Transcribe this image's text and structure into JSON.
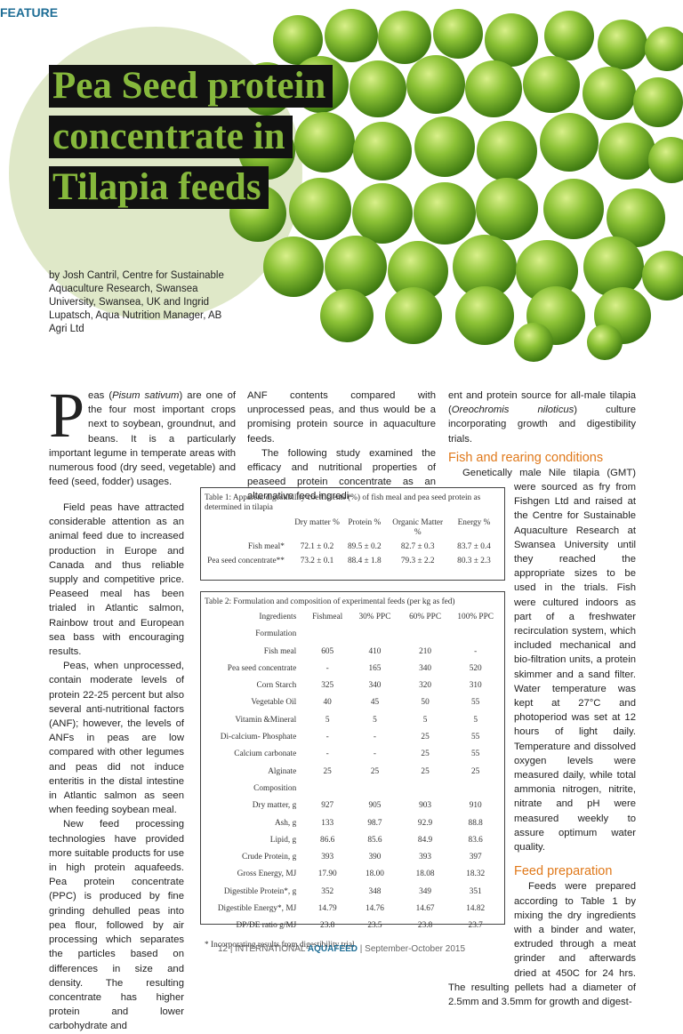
{
  "header": {
    "section": "FEATURE"
  },
  "title": {
    "lines": [
      "Pea Seed protein",
      "concentrate in",
      "Tilapia feeds"
    ]
  },
  "byline": "by Josh Cantril, Centre for Sustainable Aquaculture Research, Swansea University, Swansea, UK and Ingrid Lupatsch, Aqua Nutrition Manager, AB Agri Ltd",
  "intro": {
    "drop_cap": "P",
    "segments": [
      "eas (",
      "Pisum sativum",
      ") are one of the four most important crops next to soybean, groundnut, and beans. It is a particularly important legume in temperate areas with numerous food (dry seed, vegetable) and feed (seed, fodder) usages."
    ]
  },
  "column1": {
    "paragraphs": [
      "Field peas have attracted considerable attention as an animal feed due to increased production in Europe and Canada and thus reliable supply and competitive price. Peaseed meal has been trialed in Atlantic salmon, Rainbow trout and European sea bass with encouraging results.",
      "Peas, when unprocessed, contain moderate levels of protein 22-25 percent but also several anti-nutritional factors (ANF); however, the levels of ANFs in peas are low compared with other legumes and peas did not induce enteritis in the distal intestine in Atlantic salmon as seen when feeding soybean meal.",
      "New feed processing technologies have provided more suitable products for use in high protein aquafeeds. Pea protein concentrate (PPC) is produced by fine grinding dehulled peas into pea flour, followed by air processing which separates the particles based on differences in size and density. The resulting concentrate has higher protein and lower carbohydrate and"
    ]
  },
  "column2": {
    "paragraphs": [
      "ANF contents compared with unprocessed peas, and thus would be a promising protein source in aquaculture feeds.",
      "The following study examined the efficacy and nutritional properties of peaseed protein concentrate as an alternative feed ingredi-"
    ]
  },
  "column3": {
    "lead": [
      "ent and protein source for all-male tilapia (",
      "Oreochromis niloticus",
      ") culture incorporating growth and digestibility trials."
    ],
    "sections": [
      {
        "heading": "Fish and rearing conditions",
        "text": "Genetically male Nile tilapia (GMT) were sourced as fry from Fishgen Ltd and raised at the Centre for Sustainable Aquaculture Research at Swansea University until they reached the appropriate sizes to be used in the trials. Fish were cultured indoors as part of a freshwater recirculation system, which included mechanical and bio-filtration units, a protein skimmer and a sand filter. Water temperature was kept at 27°C and photoperiod was set at 12 hours of light daily. Temperature and dissolved oxygen levels were measured daily, while total ammonia nitrogen, nitrite, nitrate and pH were measured weekly to assure optimum water quality."
      },
      {
        "heading": "Feed preparation",
        "text": "Feeds were prepared according to Table 1 by mixing the dry ingredients with a binder and water, extruded through a meat grinder and afterwards dried at 450C for 24 hrs. The resulting pellets had a diameter of 2.5mm and 3.5mm for growth and digest-"
      }
    ]
  },
  "table1": {
    "caption": "Table 1: Apparent digestibility coefficients (%) of fish meal and pea seed protein as determined in tilapia",
    "header": [
      "",
      "Dry matter %",
      "Protein %",
      "Organic Matter %",
      "Energy %"
    ],
    "rows": [
      [
        "Fish meal*",
        "72.1 ± 0.2",
        "89.5 ± 0.2",
        "82.7 ± 0.3",
        "83.7 ± 0.4"
      ],
      [
        "Pea seed concentrate**",
        "73.2 ± 0.1",
        "88.4 ± 1.8",
        "79.3 ± 2.2",
        "80.3 ± 2.3"
      ]
    ]
  },
  "table2": {
    "caption": "Table 2: Formulation and composition of experimental feeds (per kg as fed)",
    "header": [
      "Ingredients",
      "Fishmeal",
      "30% PPC",
      "60% PPC",
      "100% PPC"
    ],
    "rows": [
      [
        "Formulation"
      ],
      [
        "Fish meal",
        "605",
        "410",
        "210",
        "-"
      ],
      [
        "Pea seed concentrate",
        "-",
        "165",
        "340",
        "520"
      ],
      [
        "Corn Starch",
        "325",
        "340",
        "320",
        "310"
      ],
      [
        "Vegetable Oil",
        "40",
        "45",
        "50",
        "55"
      ],
      [
        "Vitamin &Mineral",
        "5",
        "5",
        "5",
        "5"
      ],
      [
        "Di-calcium- Phosphate",
        "-",
        "-",
        "25",
        "55"
      ],
      [
        "Calcium carbonate",
        "-",
        "-",
        "25",
        "55"
      ],
      [
        "Alginate",
        "25",
        "25",
        "25",
        "25"
      ],
      [
        "Composition"
      ],
      [
        "Dry matter, g",
        "927",
        "905",
        "903",
        "910"
      ],
      [
        "Ash, g",
        "133",
        "98.7",
        "92.9",
        "88.8"
      ],
      [
        "Lipid, g",
        "86.6",
        "85.6",
        "84.9",
        "83.6"
      ],
      [
        "Crude Protein, g",
        "393",
        "390",
        "393",
        "397"
      ],
      [
        "Gross Energy, MJ",
        "17.90",
        "18.00",
        "18.08",
        "18.32"
      ],
      [
        "Digestible Protein*, g",
        "352",
        "348",
        "349",
        "351"
      ],
      [
        "Digestible Energy*, MJ",
        "14.79",
        "14.76",
        "14.67",
        "14.82"
      ],
      [
        "DP/DE ratio g/MJ",
        "23.8",
        "23.5",
        "23.8",
        "23.7"
      ]
    ],
    "footnote": "* Incorporating results from digestibility trial"
  },
  "footer": {
    "segments": [
      "12 | INTERNATIONAL ",
      "AQUAFEED",
      " | September-October 2015"
    ]
  }
}
